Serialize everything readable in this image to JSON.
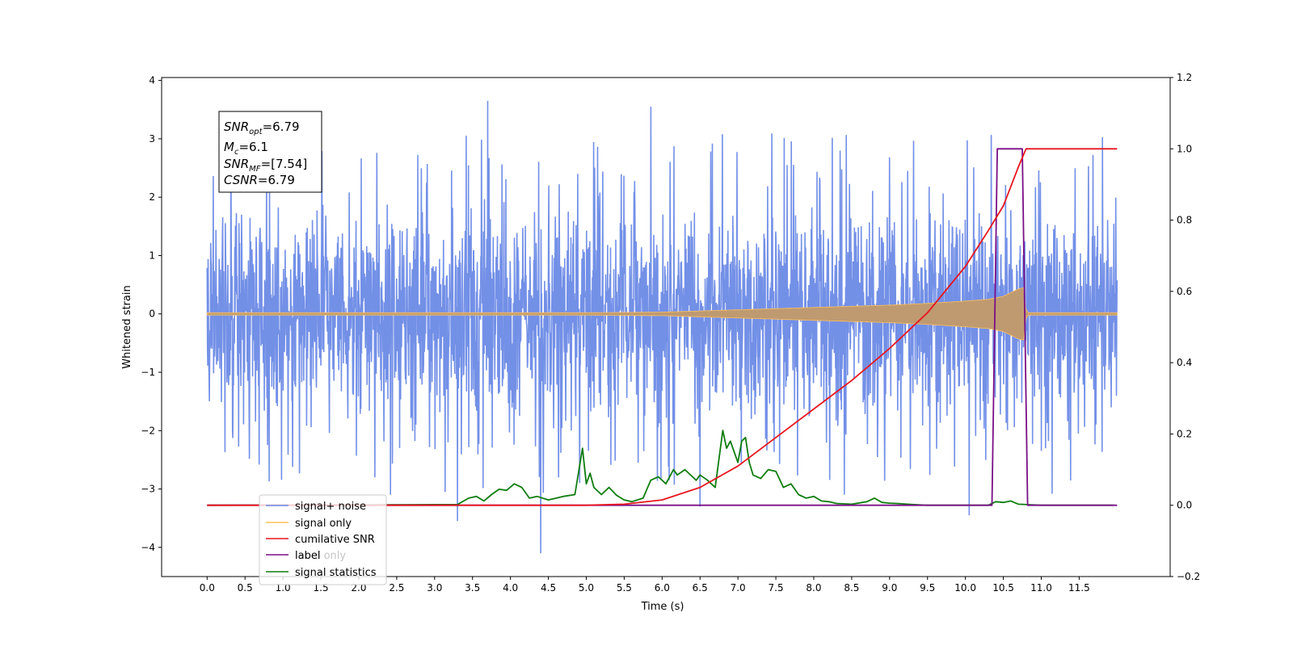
{
  "chart_data": {
    "type": "line",
    "xlabel": "Time (s)",
    "ylabel": "Whitened strain",
    "xlim": [
      -0.6,
      12.7
    ],
    "ylim": [
      -4.5,
      4.05
    ],
    "y2lim": [
      -0.2,
      1.2
    ],
    "x_ticks": [
      0.0,
      0.5,
      1.0,
      1.5,
      2.0,
      2.5,
      3.0,
      3.5,
      4.0,
      4.5,
      5.0,
      5.5,
      6.0,
      6.5,
      7.0,
      7.5,
      8.0,
      8.5,
      9.0,
      9.5,
      10.0,
      10.5,
      11.0,
      11.5
    ],
    "x_tick_labels": [
      "0.0",
      "0.5",
      "1.0",
      "1.5",
      "2.0",
      "2.5",
      "3.0",
      "3.5",
      "4.0",
      "4.5",
      "5.0",
      "5.5",
      "6.0",
      "6.5",
      "7.0",
      "7.5",
      "8.0",
      "8.5",
      "9.0",
      "9.5",
      "10.0",
      "10.5",
      "11.0",
      "11.5"
    ],
    "y_ticks": [
      4,
      3,
      2,
      1,
      0,
      -1,
      -2,
      -3,
      -4
    ],
    "y_tick_labels": [
      "4",
      "3",
      "2",
      "1",
      "0",
      "−1",
      "−2",
      "−3",
      "−4"
    ],
    "y2_ticks": [
      1.2,
      1.0,
      0.8,
      0.6,
      0.4,
      0.2,
      0.0,
      -0.2
    ],
    "y2_tick_labels": [
      "1.2",
      "1.0",
      "0.8",
      "0.6",
      "0.4",
      "0.2",
      "0.0",
      "−0.2"
    ],
    "legend_position": "lower-left",
    "grid": false,
    "annotation": {
      "lines": [
        {
          "base": "SNR",
          "sub": "opt",
          "value": "=6.79"
        },
        {
          "base": "M",
          "sub": "c",
          "value": "=6.1"
        },
        {
          "base": "SNR",
          "sub": "MF",
          "value": "=[7.54]"
        },
        {
          "base": "CSNR",
          "sub": "",
          "value": "=6.79"
        }
      ]
    },
    "series": [
      {
        "name": "signal+ noise",
        "color": "#6b8ae6",
        "axis": "left",
        "kind": "noise",
        "x_range": [
          0.0,
          12.0
        ],
        "envelope_upper": 2.7,
        "envelope_lower": -2.4,
        "outliers": [
          {
            "x": 3.3,
            "y": -3.55
          },
          {
            "x": 3.7,
            "y": 3.65
          },
          {
            "x": 4.4,
            "y": -4.1
          },
          {
            "x": 5.85,
            "y": 3.55
          },
          {
            "x": 6.5,
            "y": -3.3
          },
          {
            "x": 10.05,
            "y": -3.45
          }
        ]
      },
      {
        "name": "signal only",
        "color": "#ffbf5a",
        "fill_color": "#bf9a70",
        "axis": "left",
        "kind": "chirp",
        "x": [
          0.0,
          1.0,
          2.0,
          3.0,
          4.0,
          5.0,
          6.0,
          6.5,
          7.0,
          7.5,
          8.0,
          8.5,
          9.0,
          9.5,
          10.0,
          10.3,
          10.5,
          10.7,
          10.78,
          10.8,
          12.0
        ],
        "amplitude": [
          0.02,
          0.02,
          0.02,
          0.02,
          0.02,
          0.02,
          0.03,
          0.05,
          0.07,
          0.09,
          0.11,
          0.13,
          0.15,
          0.18,
          0.22,
          0.25,
          0.3,
          0.43,
          0.45,
          0.02,
          0.02
        ]
      },
      {
        "name": "cumilative SNR",
        "color": "#e8141e",
        "axis": "right",
        "x": [
          0.0,
          5.0,
          5.5,
          6.0,
          6.5,
          7.0,
          7.5,
          8.0,
          8.5,
          9.0,
          9.5,
          10.0,
          10.3,
          10.5,
          10.7,
          10.8,
          12.0
        ],
        "values": [
          0.0,
          0.0,
          0.003,
          0.015,
          0.05,
          0.11,
          0.19,
          0.27,
          0.35,
          0.44,
          0.54,
          0.67,
          0.77,
          0.84,
          0.95,
          1.0,
          1.0
        ]
      },
      {
        "name": "label",
        "color": "#7a0f86",
        "axis": "right",
        "x": [
          0.0,
          10.35,
          10.42,
          10.75,
          10.82,
          12.0
        ],
        "values": [
          0.0,
          0.0,
          1.0,
          1.0,
          0.0,
          0.0
        ]
      },
      {
        "name": "label only",
        "color": "#000000",
        "axis": "right",
        "hidden": true
      },
      {
        "name": "signal statistics",
        "color": "#0e7d0e",
        "axis": "right",
        "x": [
          0.0,
          3.3,
          3.45,
          3.55,
          3.65,
          3.75,
          3.85,
          3.95,
          4.05,
          4.15,
          4.25,
          4.35,
          4.5,
          4.7,
          4.85,
          4.95,
          5.0,
          5.05,
          5.1,
          5.2,
          5.3,
          5.4,
          5.5,
          5.6,
          5.75,
          5.85,
          5.95,
          6.05,
          6.15,
          6.2,
          6.3,
          6.35,
          6.45,
          6.5,
          6.6,
          6.7,
          6.8,
          6.85,
          6.9,
          7.0,
          7.05,
          7.1,
          7.15,
          7.2,
          7.3,
          7.4,
          7.5,
          7.6,
          7.7,
          7.8,
          7.9,
          8.0,
          8.1,
          8.2,
          8.3,
          8.5,
          8.7,
          8.8,
          8.9,
          9.0,
          9.1,
          9.3,
          9.5,
          10.3,
          10.4,
          10.5,
          10.6,
          10.7,
          11.0,
          11.95
        ],
        "values": [
          0.0,
          0.002,
          0.02,
          0.025,
          0.012,
          0.03,
          0.045,
          0.042,
          0.06,
          0.05,
          0.02,
          0.025,
          0.015,
          0.025,
          0.03,
          0.16,
          0.06,
          0.09,
          0.05,
          0.03,
          0.05,
          0.028,
          0.015,
          0.01,
          0.02,
          0.07,
          0.08,
          0.06,
          0.1,
          0.085,
          0.1,
          0.09,
          0.07,
          0.085,
          0.07,
          0.05,
          0.21,
          0.16,
          0.18,
          0.12,
          0.18,
          0.19,
          0.12,
          0.085,
          0.075,
          0.1,
          0.095,
          0.05,
          0.06,
          0.03,
          0.02,
          0.025,
          0.012,
          0.01,
          0.005,
          0.003,
          0.01,
          0.02,
          0.008,
          0.006,
          0.005,
          0.002,
          0.0,
          0.0,
          0.01,
          0.008,
          0.012,
          0.003,
          0.0,
          0.0
        ]
      }
    ]
  }
}
